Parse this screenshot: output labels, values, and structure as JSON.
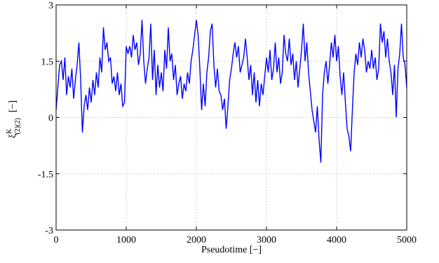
{
  "chart_data": {
    "type": "line",
    "xlabel": "Pseudotime [−]",
    "ylabel": {
      "base": "ξ",
      "sup": "K",
      "sub": "(2)(2)",
      "unit": "[−]"
    },
    "xlim": [
      0,
      5000
    ],
    "xticks": [
      0,
      1000,
      2000,
      3000,
      4000,
      5000
    ],
    "ylim": [
      -3,
      3
    ],
    "yticks": [
      -3,
      -1.5,
      0,
      1.5,
      3
    ],
    "grid": true,
    "x": [
      0,
      25,
      50,
      75,
      100,
      125,
      150,
      175,
      200,
      225,
      250,
      275,
      300,
      325,
      350,
      375,
      400,
      425,
      450,
      475,
      500,
      525,
      550,
      575,
      600,
      625,
      650,
      675,
      700,
      725,
      750,
      775,
      800,
      825,
      850,
      875,
      900,
      925,
      950,
      975,
      1000,
      1025,
      1050,
      1075,
      1100,
      1125,
      1150,
      1175,
      1200,
      1225,
      1250,
      1275,
      1300,
      1325,
      1350,
      1375,
      1400,
      1425,
      1450,
      1475,
      1500,
      1525,
      1550,
      1575,
      1600,
      1625,
      1650,
      1675,
      1700,
      1725,
      1750,
      1775,
      1800,
      1825,
      1850,
      1875,
      1900,
      1925,
      1950,
      1975,
      2000,
      2025,
      2050,
      2075,
      2100,
      2125,
      2150,
      2175,
      2200,
      2225,
      2250,
      2275,
      2300,
      2325,
      2350,
      2375,
      2400,
      2425,
      2450,
      2475,
      2500,
      2525,
      2550,
      2575,
      2600,
      2625,
      2650,
      2675,
      2700,
      2725,
      2750,
      2775,
      2800,
      2825,
      2850,
      2875,
      2900,
      2925,
      2950,
      2975,
      3000,
      3025,
      3050,
      3075,
      3100,
      3125,
      3150,
      3175,
      3200,
      3225,
      3250,
      3275,
      3300,
      3325,
      3350,
      3375,
      3400,
      3425,
      3450,
      3475,
      3500,
      3525,
      3550,
      3575,
      3600,
      3625,
      3650,
      3675,
      3700,
      3725,
      3750,
      3775,
      3800,
      3825,
      3850,
      3875,
      3900,
      3925,
      3950,
      3975,
      4000,
      4025,
      4050,
      4075,
      4100,
      4125,
      4150,
      4175,
      4200,
      4225,
      4250,
      4275,
      4300,
      4325,
      4350,
      4375,
      4400,
      4425,
      4450,
      4475,
      4500,
      4525,
      4550,
      4575,
      4600,
      4625,
      4650,
      4675,
      4700,
      4725,
      4750,
      4775,
      4800,
      4825,
      4850,
      4875,
      4900,
      4925,
      4950,
      4975,
      5000
    ],
    "series": [
      {
        "color": "#0000ff",
        "values": [
          0.2,
          0.8,
          1.4,
          1.5,
          1.0,
          1.6,
          0.6,
          1.1,
          0.8,
          1.3,
          0.5,
          1.0,
          1.4,
          2.0,
          1.0,
          -0.4,
          0.3,
          0.6,
          0.2,
          0.8,
          0.4,
          1.0,
          0.6,
          1.2,
          0.8,
          1.6,
          1.2,
          2.4,
          1.8,
          2.0,
          1.5,
          1.6,
          0.9,
          1.1,
          0.7,
          1.2,
          0.6,
          0.9,
          0.3,
          0.4,
          1.9,
          1.7,
          1.9,
          1.6,
          2.2,
          1.8,
          2.0,
          1.4,
          1.7,
          2.6,
          1.5,
          0.9,
          1.3,
          1.6,
          2.5,
          1.0,
          1.8,
          0.6,
          1.4,
          0.8,
          1.2,
          0.7,
          1.8,
          1.3,
          2.4,
          1.5,
          1.7,
          1.0,
          1.4,
          0.6,
          0.9,
          1.1,
          0.5,
          0.9,
          0.7,
          1.2,
          0.9,
          1.5,
          1.8,
          2.2,
          2.6,
          2.2,
          1.3,
          0.2,
          0.9,
          0.3,
          1.2,
          1.6,
          2.3,
          2.5,
          1.4,
          0.8,
          1.3,
          0.7,
          0.6,
          0.2,
          0.5,
          -0.3,
          0.3,
          1.0,
          1.3,
          1.7,
          2.0,
          1.6,
          1.9,
          1.2,
          1.4,
          1.6,
          2.1,
          1.6,
          1.0,
          1.4,
          0.6,
          1.2,
          0.4,
          1.0,
          0.3,
          0.9,
          0.6,
          1.1,
          1.6,
          1.2,
          1.8,
          1.0,
          1.3,
          2.0,
          1.2,
          1.6,
          0.9,
          1.2,
          2.2,
          1.7,
          1.5,
          2.1,
          1.4,
          1.7,
          1.0,
          1.5,
          0.8,
          1.3,
          1.8,
          2.5,
          1.5,
          2.0,
          1.2,
          0.7,
          0.2,
          -0.1,
          -0.4,
          0.3,
          -0.6,
          -1.2,
          0.6,
          1.2,
          1.5,
          0.9,
          1.4,
          2.0,
          1.6,
          2.2,
          1.5,
          1.9,
          1.1,
          0.6,
          1.2,
          0.4,
          -0.3,
          -0.5,
          -0.9,
          0.2,
          1.2,
          1.7,
          1.4,
          2.0,
          1.6,
          2.1,
          1.8,
          1.2,
          1.5,
          1.3,
          1.8,
          1.3,
          1.6,
          1.0,
          1.3,
          2.5,
          2.0,
          2.3,
          1.6,
          2.1,
          1.5,
          1.2,
          0.6,
          1.4,
          0.0,
          1.3,
          1.7,
          2.5,
          1.6,
          1.4,
          0.8
        ]
      }
    ]
  }
}
